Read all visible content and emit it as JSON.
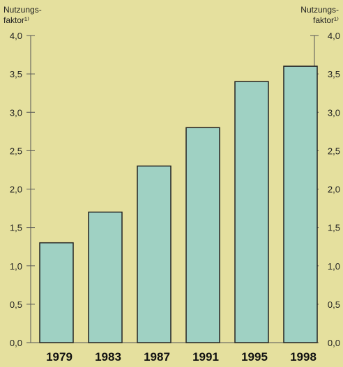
{
  "chart_data": {
    "type": "bar",
    "categories": [
      "1979",
      "1983",
      "1987",
      "1991",
      "1995",
      "1998"
    ],
    "values": [
      1.3,
      1.7,
      2.3,
      2.8,
      3.4,
      3.6
    ],
    "ylabel_left": [
      "Nutzungs-",
      "faktor¹⁾"
    ],
    "ylabel_right": [
      "Nutzungs-",
      "faktor¹⁾"
    ],
    "ylim": [
      0,
      4.0
    ],
    "yticks": [
      "0,0",
      "0,5",
      "1,0",
      "1,5",
      "2,0",
      "2,5",
      "3,0",
      "3,5",
      "4,0"
    ],
    "grid": false,
    "bar_color": "#9fd1c3",
    "background_color": "#e5e09e"
  }
}
